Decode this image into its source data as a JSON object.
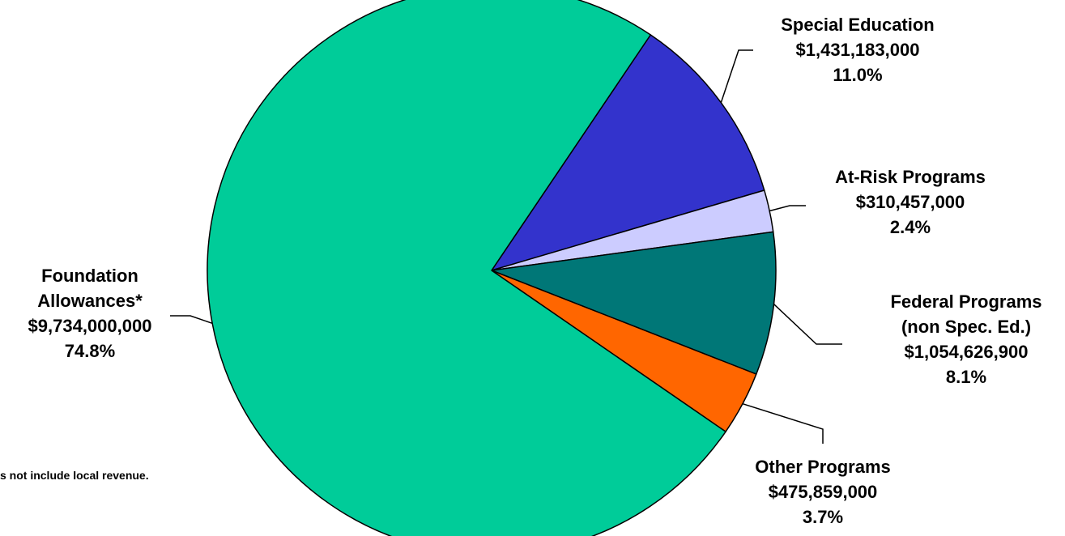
{
  "chart_data": {
    "type": "pie",
    "title": "",
    "units": "$",
    "slices": [
      {
        "name": "Special Education",
        "value": 1431183000,
        "value_label": "$1,431,183,000",
        "percent": 11.0,
        "percent_label": "11.0%",
        "color": "#3333cc",
        "label_lines": [
          "Special Education",
          "$1,431,183,000",
          "11.0%"
        ]
      },
      {
        "name": "At-Risk Programs",
        "value": 310457000,
        "value_label": "$310,457,000",
        "percent": 2.4,
        "percent_label": "2.4%",
        "color": "#ccccff",
        "label_lines": [
          "At-Risk Programs",
          "$310,457,000",
          "2.4%"
        ]
      },
      {
        "name": "Federal Programs (non Spec. Ed.)",
        "value": 1054626900,
        "value_label": "$1,054,626,900",
        "percent": 8.1,
        "percent_label": "8.1%",
        "color": "#007777",
        "label_lines": [
          "Federal Programs",
          "(non Spec. Ed.)",
          "$1,054,626,900",
          "8.1%"
        ]
      },
      {
        "name": "Other Programs",
        "value": 475859000,
        "value_label": "$475,859,000",
        "percent": 3.7,
        "percent_label": "3.7%",
        "color": "#ff6600",
        "label_lines": [
          "Other Programs",
          "$475,859,000",
          "3.7%"
        ]
      },
      {
        "name": "Foundation Allowances*",
        "value": 9734000000,
        "value_label": "$9,734,000,000",
        "percent": 74.8,
        "percent_label": "74.8%",
        "color": "#00cc99",
        "label_lines": [
          "Foundation",
          "Allowances*",
          "$9,734,000,000",
          "74.8%"
        ]
      }
    ],
    "footnote": "s not include local revenue."
  }
}
